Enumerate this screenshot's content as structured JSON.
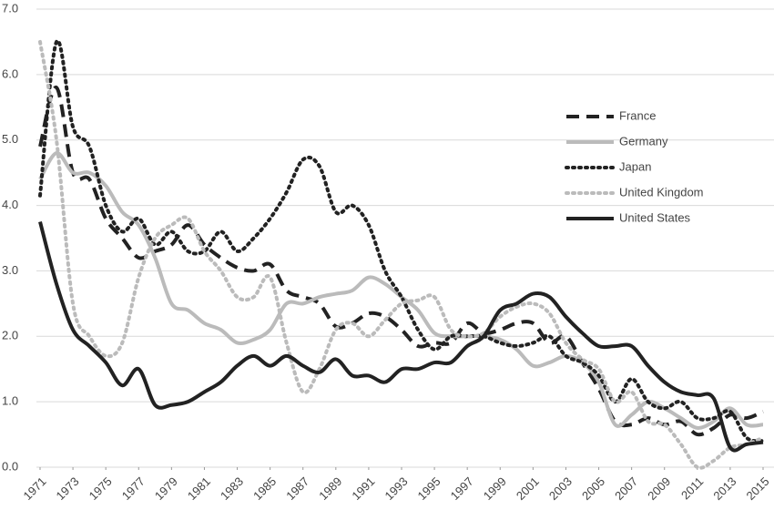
{
  "chart_data": {
    "type": "line",
    "x": [
      1971,
      1972,
      1973,
      1974,
      1975,
      1976,
      1977,
      1978,
      1979,
      1980,
      1981,
      1982,
      1983,
      1984,
      1985,
      1986,
      1987,
      1988,
      1989,
      1990,
      1991,
      1992,
      1993,
      1994,
      1995,
      1996,
      1997,
      1998,
      1999,
      2000,
      2001,
      2002,
      2003,
      2004,
      2005,
      2006,
      2007,
      2008,
      2009,
      2010,
      2011,
      2012,
      2013,
      2014,
      2015
    ],
    "xlim": [
      1971,
      2015
    ],
    "xticks": [
      1971,
      1973,
      1975,
      1977,
      1979,
      1981,
      1983,
      1985,
      1987,
      1989,
      1991,
      1993,
      1995,
      1997,
      1999,
      2001,
      2003,
      2005,
      2007,
      2009,
      2011,
      2013,
      2015
    ],
    "ylim": [
      0,
      7
    ],
    "yticks": [
      {
        "value": 0,
        "label": "0.0"
      },
      {
        "value": 1,
        "label": "1.0"
      },
      {
        "value": 2,
        "label": "2.0"
      },
      {
        "value": 3,
        "label": "3.0"
      },
      {
        "value": 4,
        "label": "4.0"
      },
      {
        "value": 5,
        "label": "5.0"
      },
      {
        "value": 6,
        "label": "6.0"
      },
      {
        "value": 7,
        "label": "7.0"
      }
    ],
    "grid": true,
    "legend": "right",
    "series": [
      {
        "name": "France",
        "color": "#222222",
        "dash": "dashed",
        "values": [
          4.9,
          5.8,
          4.5,
          4.4,
          3.8,
          3.5,
          3.2,
          3.3,
          3.4,
          3.7,
          3.4,
          3.2,
          3.05,
          3.0,
          3.1,
          2.7,
          2.6,
          2.5,
          2.15,
          2.2,
          2.35,
          2.3,
          2.1,
          1.85,
          1.9,
          1.9,
          2.2,
          2.05,
          2.1,
          2.2,
          2.2,
          1.9,
          2.0,
          1.6,
          1.2,
          0.7,
          0.65,
          0.75,
          0.65,
          0.7,
          0.5,
          0.6,
          0.8,
          0.75,
          0.85
        ]
      },
      {
        "name": "Germany",
        "color": "#bbbbbb",
        "dash": "solid",
        "values": [
          4.4,
          4.8,
          4.5,
          4.5,
          4.3,
          3.9,
          3.7,
          3.2,
          2.5,
          2.4,
          2.2,
          2.1,
          1.9,
          1.95,
          2.1,
          2.5,
          2.5,
          2.6,
          2.65,
          2.7,
          2.9,
          2.8,
          2.6,
          2.4,
          2.05,
          2.0,
          2.0,
          2.0,
          1.95,
          1.8,
          1.55,
          1.6,
          1.7,
          1.6,
          1.3,
          0.65,
          0.8,
          1.0,
          0.9,
          0.75,
          0.6,
          0.7,
          0.9,
          0.65,
          0.65
        ]
      },
      {
        "name": "Japan",
        "color": "#222222",
        "dash": "dotted",
        "values": [
          4.15,
          6.5,
          5.2,
          4.9,
          4.0,
          3.6,
          3.8,
          3.4,
          3.6,
          3.3,
          3.3,
          3.6,
          3.3,
          3.5,
          3.8,
          4.2,
          4.7,
          4.6,
          3.9,
          4.0,
          3.7,
          3.0,
          2.6,
          2.1,
          1.8,
          2.0,
          2.0,
          2.0,
          1.9,
          1.85,
          1.9,
          2.0,
          1.7,
          1.6,
          1.4,
          1.0,
          1.35,
          1.0,
          0.9,
          1.0,
          0.75,
          0.75,
          0.85,
          0.45,
          0.4
        ]
      },
      {
        "name": "United Kingdom",
        "color": "#bbbbbb",
        "dash": "dotted",
        "values": [
          6.5,
          5.0,
          2.5,
          2.0,
          1.7,
          1.9,
          2.9,
          3.5,
          3.7,
          3.8,
          3.3,
          3.0,
          2.6,
          2.6,
          2.9,
          1.9,
          1.15,
          1.5,
          2.1,
          2.2,
          2.0,
          2.25,
          2.5,
          2.55,
          2.6,
          2.1,
          2.0,
          2.05,
          2.3,
          2.45,
          2.5,
          2.35,
          1.9,
          1.65,
          1.5,
          1.0,
          1.15,
          0.7,
          0.65,
          0.35,
          0.0,
          0.1,
          0.3,
          0.35,
          0.45
        ]
      },
      {
        "name": "United States",
        "color": "#222222",
        "dash": "solid",
        "values": [
          3.75,
          2.8,
          2.1,
          1.85,
          1.6,
          1.25,
          1.5,
          0.95,
          0.95,
          1.0,
          1.15,
          1.3,
          1.55,
          1.7,
          1.55,
          1.7,
          1.55,
          1.45,
          1.65,
          1.4,
          1.4,
          1.3,
          1.5,
          1.5,
          1.6,
          1.6,
          1.85,
          2.0,
          2.4,
          2.5,
          2.65,
          2.6,
          2.3,
          2.05,
          1.85,
          1.85,
          1.85,
          1.55,
          1.3,
          1.15,
          1.1,
          1.05,
          0.3,
          0.35,
          0.38
        ]
      }
    ]
  }
}
